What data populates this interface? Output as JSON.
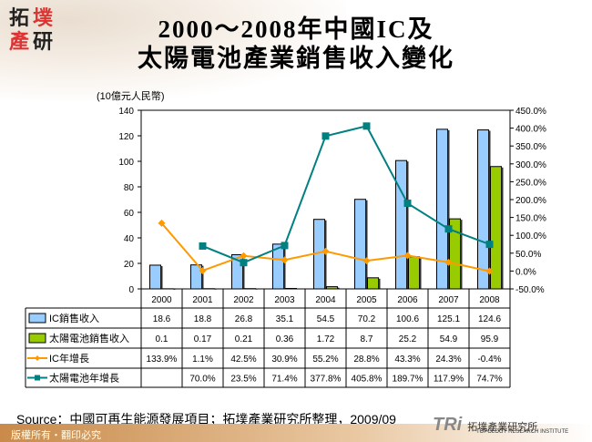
{
  "header": {
    "logo_text": "拓墣產研",
    "title_line1": "2000～2008年中國IC及",
    "title_line2": "太陽電池產業銷售收入變化"
  },
  "chart_data": {
    "type": "bar+line",
    "unit_label": "(10億元人民幣)",
    "categories": [
      "2000",
      "2001",
      "2002",
      "2003",
      "2004",
      "2005",
      "2006",
      "2007",
      "2008"
    ],
    "ylim": [
      0,
      140
    ],
    "yticks": [
      0,
      20,
      40,
      60,
      80,
      100,
      120,
      140
    ],
    "y2lim": [
      -50,
      450
    ],
    "y2ticks": [
      "-50.0%",
      "0.0%",
      "50.0%",
      "100.0%",
      "150.0%",
      "200.0%",
      "250.0%",
      "300.0%",
      "350.0%",
      "400.0%",
      "450.0%"
    ],
    "grid": false,
    "series": [
      {
        "name": "IC銷售收入",
        "type": "bar",
        "axis": "left",
        "color": "#99ccff",
        "values": [
          18.6,
          18.8,
          26.8,
          35.1,
          54.5,
          70.2,
          100.6,
          125.1,
          124.6
        ],
        "labels": [
          "18.6",
          "18.8",
          "26.8",
          "35.1",
          "54.5",
          "70.2",
          "100.6",
          "125.1",
          "124.6"
        ]
      },
      {
        "name": "太陽電池銷售收入",
        "type": "bar",
        "axis": "left",
        "color": "#99cc00",
        "values": [
          0.1,
          0.17,
          0.21,
          0.36,
          1.72,
          8.7,
          25.2,
          54.9,
          95.9
        ],
        "labels": [
          "0.1",
          "0.17",
          "0.21",
          "0.36",
          "1.72",
          "8.7",
          "25.2",
          "54.9",
          "95.9"
        ]
      },
      {
        "name": "IC年增長",
        "type": "line",
        "axis": "right",
        "color": "#ff9900",
        "marker": "diamond",
        "values": [
          133.9,
          1.1,
          42.5,
          30.9,
          55.2,
          28.8,
          43.3,
          24.3,
          -0.4
        ],
        "labels": [
          "133.9%",
          "1.1%",
          "42.5%",
          "30.9%",
          "55.2%",
          "28.8%",
          "43.3%",
          "24.3%",
          "-0.4%"
        ]
      },
      {
        "name": "太陽電池年增長",
        "type": "line",
        "axis": "right",
        "color": "#008080",
        "marker": "square",
        "values": [
          null,
          70.0,
          23.5,
          71.4,
          377.8,
          405.8,
          189.7,
          117.9,
          74.7
        ],
        "labels": [
          "",
          "70.0%",
          "23.5%",
          "71.4%",
          "377.8%",
          "405.8%",
          "189.7%",
          "117.9%",
          "74.7%"
        ]
      }
    ],
    "legend": "data-table"
  },
  "footer": {
    "source": "Source：中國可再生能源發展項目；拓墣產業研究所整理，2009/09",
    "copyright": "版權所有・翻印必究",
    "brand": "TRi",
    "brand_cn": "拓墣產業研究所",
    "brand_en": "TOPOLOGY RESEARCH INSTITUTE"
  }
}
